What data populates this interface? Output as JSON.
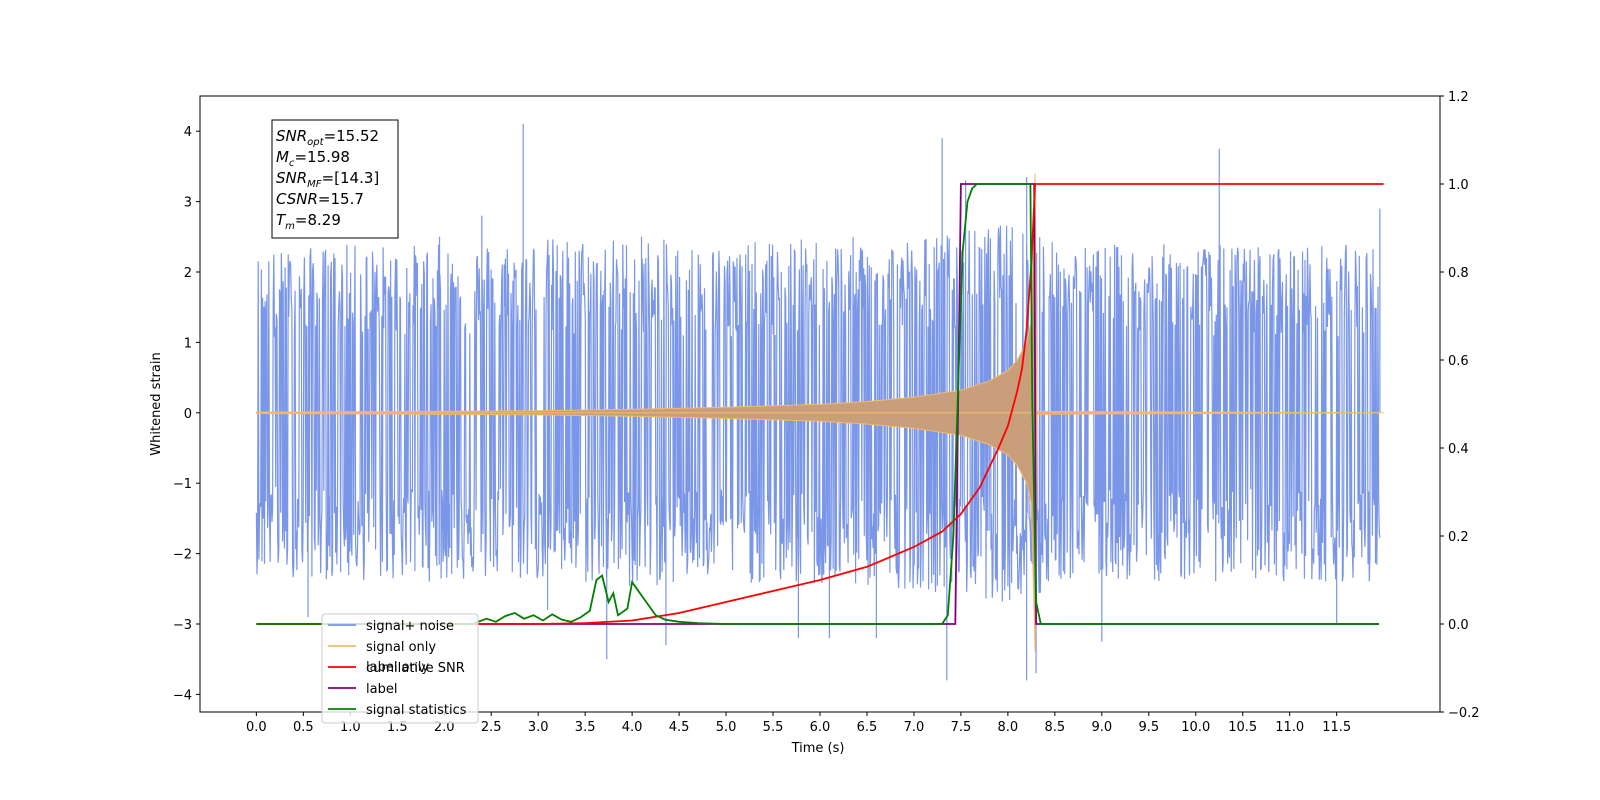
{
  "chart_data": {
    "type": "line",
    "xlabel": "Time (s)",
    "ylabel": "Whitened strain",
    "xlim": [
      -0.6,
      12.6
    ],
    "ylim": [
      -4.25,
      4.5
    ],
    "y2lim": [
      -0.2,
      1.2
    ],
    "x_ticks": [
      0.0,
      0.5,
      1.0,
      1.5,
      2.0,
      2.5,
      3.0,
      3.5,
      4.0,
      4.5,
      5.0,
      5.5,
      6.0,
      6.5,
      7.0,
      7.5,
      8.0,
      8.5,
      9.0,
      9.5,
      10.0,
      10.5,
      11.0,
      11.5
    ],
    "x_tick_labels": [
      "0.0",
      "0.5",
      "1.0",
      "1.5",
      "2.0",
      "2.5",
      "3.0",
      "3.5",
      "4.0",
      "4.5",
      "5.0",
      "5.5",
      "6.0",
      "6.5",
      "7.0",
      "7.5",
      "8.0",
      "8.5",
      "9.0",
      "9.5",
      "10.0",
      "10.5",
      "11.0",
      "11.5"
    ],
    "y_ticks": [
      -4,
      -3,
      -2,
      -1,
      0,
      1,
      2,
      3,
      4
    ],
    "y_tick_labels": [
      "−4",
      "−3",
      "−2",
      "−1",
      "0",
      "1",
      "2",
      "3",
      "4"
    ],
    "y2_ticks": [
      -0.2,
      0.0,
      0.2,
      0.4,
      0.6,
      0.8,
      1.0,
      1.2
    ],
    "y2_tick_labels": [
      "−0.2",
      "0.0",
      "0.2",
      "0.4",
      "0.6",
      "0.8",
      "1.0",
      "1.2"
    ],
    "grid": false,
    "legend_position": "lower-left",
    "stats_box": {
      "lines": [
        {
          "main": "SNR",
          "sub": "opt",
          "rest": "=15.52"
        },
        {
          "main": "M",
          "sub": "c",
          "rest": "=15.98"
        },
        {
          "main": "SNR",
          "sub": "MF",
          "rest": "=[14.3]"
        },
        {
          "main": "CSNR",
          "sub": "",
          "rest": "=15.7"
        },
        {
          "main": "T",
          "sub": "m",
          "rest": "=8.29"
        }
      ]
    },
    "series": [
      {
        "name": "signal+ noise",
        "axis": "left",
        "color": "#7a96e8",
        "envelope_x": [
          0.0,
          1.0,
          2.0,
          3.0,
          4.0,
          5.0,
          6.0,
          7.0,
          7.5,
          8.0,
          8.29,
          8.5,
          9.0,
          10.0,
          11.0,
          12.0
        ],
        "envelope_upper": [
          2.3,
          2.4,
          2.4,
          2.5,
          2.5,
          2.4,
          2.5,
          2.5,
          2.6,
          2.7,
          2.8,
          2.4,
          2.4,
          2.4,
          2.4,
          2.4
        ],
        "envelope_lower": [
          -2.3,
          -2.4,
          -2.4,
          -2.4,
          -2.5,
          -2.4,
          -2.5,
          -2.5,
          -2.6,
          -2.7,
          -2.8,
          -2.4,
          -2.4,
          -2.4,
          -2.4,
          -2.4
        ],
        "spikes": [
          {
            "x": 0.55,
            "y": -2.9
          },
          {
            "x": 1.95,
            "y": 2.5
          },
          {
            "x": 2.4,
            "y": 2.8
          },
          {
            "x": 2.84,
            "y": 4.1
          },
          {
            "x": 3.1,
            "y": -2.8
          },
          {
            "x": 3.73,
            "y": -3.5
          },
          {
            "x": 4.1,
            "y": 2.5
          },
          {
            "x": 4.36,
            "y": -3.3
          },
          {
            "x": 5.77,
            "y": -3.2
          },
          {
            "x": 6.1,
            "y": -3.2
          },
          {
            "x": 6.6,
            "y": -3.2
          },
          {
            "x": 7.3,
            "y": 3.9
          },
          {
            "x": 7.35,
            "y": -3.8
          },
          {
            "x": 7.55,
            "y": 3.3
          },
          {
            "x": 8.2,
            "y": -3.8
          },
          {
            "x": 8.3,
            "y": -3.7
          },
          {
            "x": 8.2,
            "y": 3.35
          },
          {
            "x": 9.0,
            "y": -3.25
          },
          {
            "x": 10.25,
            "y": 3.75
          },
          {
            "x": 11.5,
            "y": -3.0
          },
          {
            "x": 11.96,
            "y": 2.9
          }
        ]
      },
      {
        "name": "signal only",
        "axis": "left",
        "color": "#f5b96b",
        "fill_color": "#c89f7a",
        "envelope_x": [
          0.0,
          2.0,
          3.0,
          4.0,
          5.0,
          6.0,
          6.5,
          7.0,
          7.5,
          7.8,
          8.0,
          8.1,
          8.2,
          8.25,
          8.29,
          8.31,
          12.0
        ],
        "envelope": [
          0.01,
          0.02,
          0.03,
          0.05,
          0.08,
          0.12,
          0.16,
          0.22,
          0.32,
          0.45,
          0.6,
          0.75,
          1.0,
          1.3,
          3.4,
          0.02,
          0.0
        ]
      },
      {
        "name": "cumilative SNR",
        "axis": "right",
        "color": "#ff0000",
        "x": [
          0.0,
          3.0,
          3.5,
          4.0,
          4.5,
          5.0,
          5.5,
          6.0,
          6.5,
          7.0,
          7.3,
          7.5,
          7.7,
          7.9,
          8.0,
          8.1,
          8.15,
          8.2,
          8.25,
          8.29,
          12.0
        ],
        "y": [
          0.0,
          0.0,
          0.002,
          0.008,
          0.025,
          0.05,
          0.075,
          0.1,
          0.13,
          0.175,
          0.21,
          0.25,
          0.31,
          0.4,
          0.45,
          0.53,
          0.58,
          0.67,
          0.82,
          1.0,
          1.0
        ]
      },
      {
        "name": "label",
        "axis": "right",
        "color": "#800080",
        "x": [
          0.0,
          7.44,
          7.5,
          8.28,
          8.3,
          11.95
        ],
        "y": [
          0.0,
          0.0,
          1.0,
          1.0,
          0.0,
          0.0
        ]
      },
      {
        "name": "signal statistics",
        "axis": "right",
        "color": "#008000",
        "x": [
          0.0,
          2.3,
          2.45,
          2.55,
          2.65,
          2.75,
          2.85,
          2.95,
          3.05,
          3.15,
          3.25,
          3.35,
          3.45,
          3.55,
          3.62,
          3.68,
          3.75,
          3.8,
          3.85,
          3.95,
          4.0,
          4.05,
          4.15,
          4.25,
          4.35,
          4.5,
          4.7,
          5.0,
          7.3,
          7.36,
          7.42,
          7.48,
          7.52,
          7.57,
          7.62,
          7.67,
          7.75,
          8.24,
          8.26,
          8.3,
          8.35,
          11.95
        ],
        "y": [
          0.0,
          0.0,
          0.012,
          0.005,
          0.018,
          0.025,
          0.012,
          0.02,
          0.008,
          0.022,
          0.01,
          0.005,
          0.015,
          0.03,
          0.1,
          0.11,
          0.05,
          0.07,
          0.02,
          0.035,
          0.095,
          0.08,
          0.05,
          0.02,
          0.01,
          0.005,
          0.002,
          0.0,
          0.0,
          0.02,
          0.2,
          0.6,
          0.85,
          0.96,
          0.99,
          1.0,
          1.0,
          1.0,
          0.5,
          0.05,
          0.0,
          0.0
        ]
      }
    ],
    "legend_entries": [
      {
        "label": "signal+ noise",
        "color": "#7a96e8"
      },
      {
        "label": "signal only",
        "color": "#f5b96b"
      },
      {
        "label": "cumilative SNR",
        "color": "#ff0000"
      },
      {
        "label": "label",
        "color": "#800080"
      },
      {
        "label": "signal statistics",
        "color": "#008000"
      }
    ],
    "hidden_legend_entries": [
      {
        "label": "signal only"
      },
      {
        "label": "label only"
      }
    ]
  }
}
